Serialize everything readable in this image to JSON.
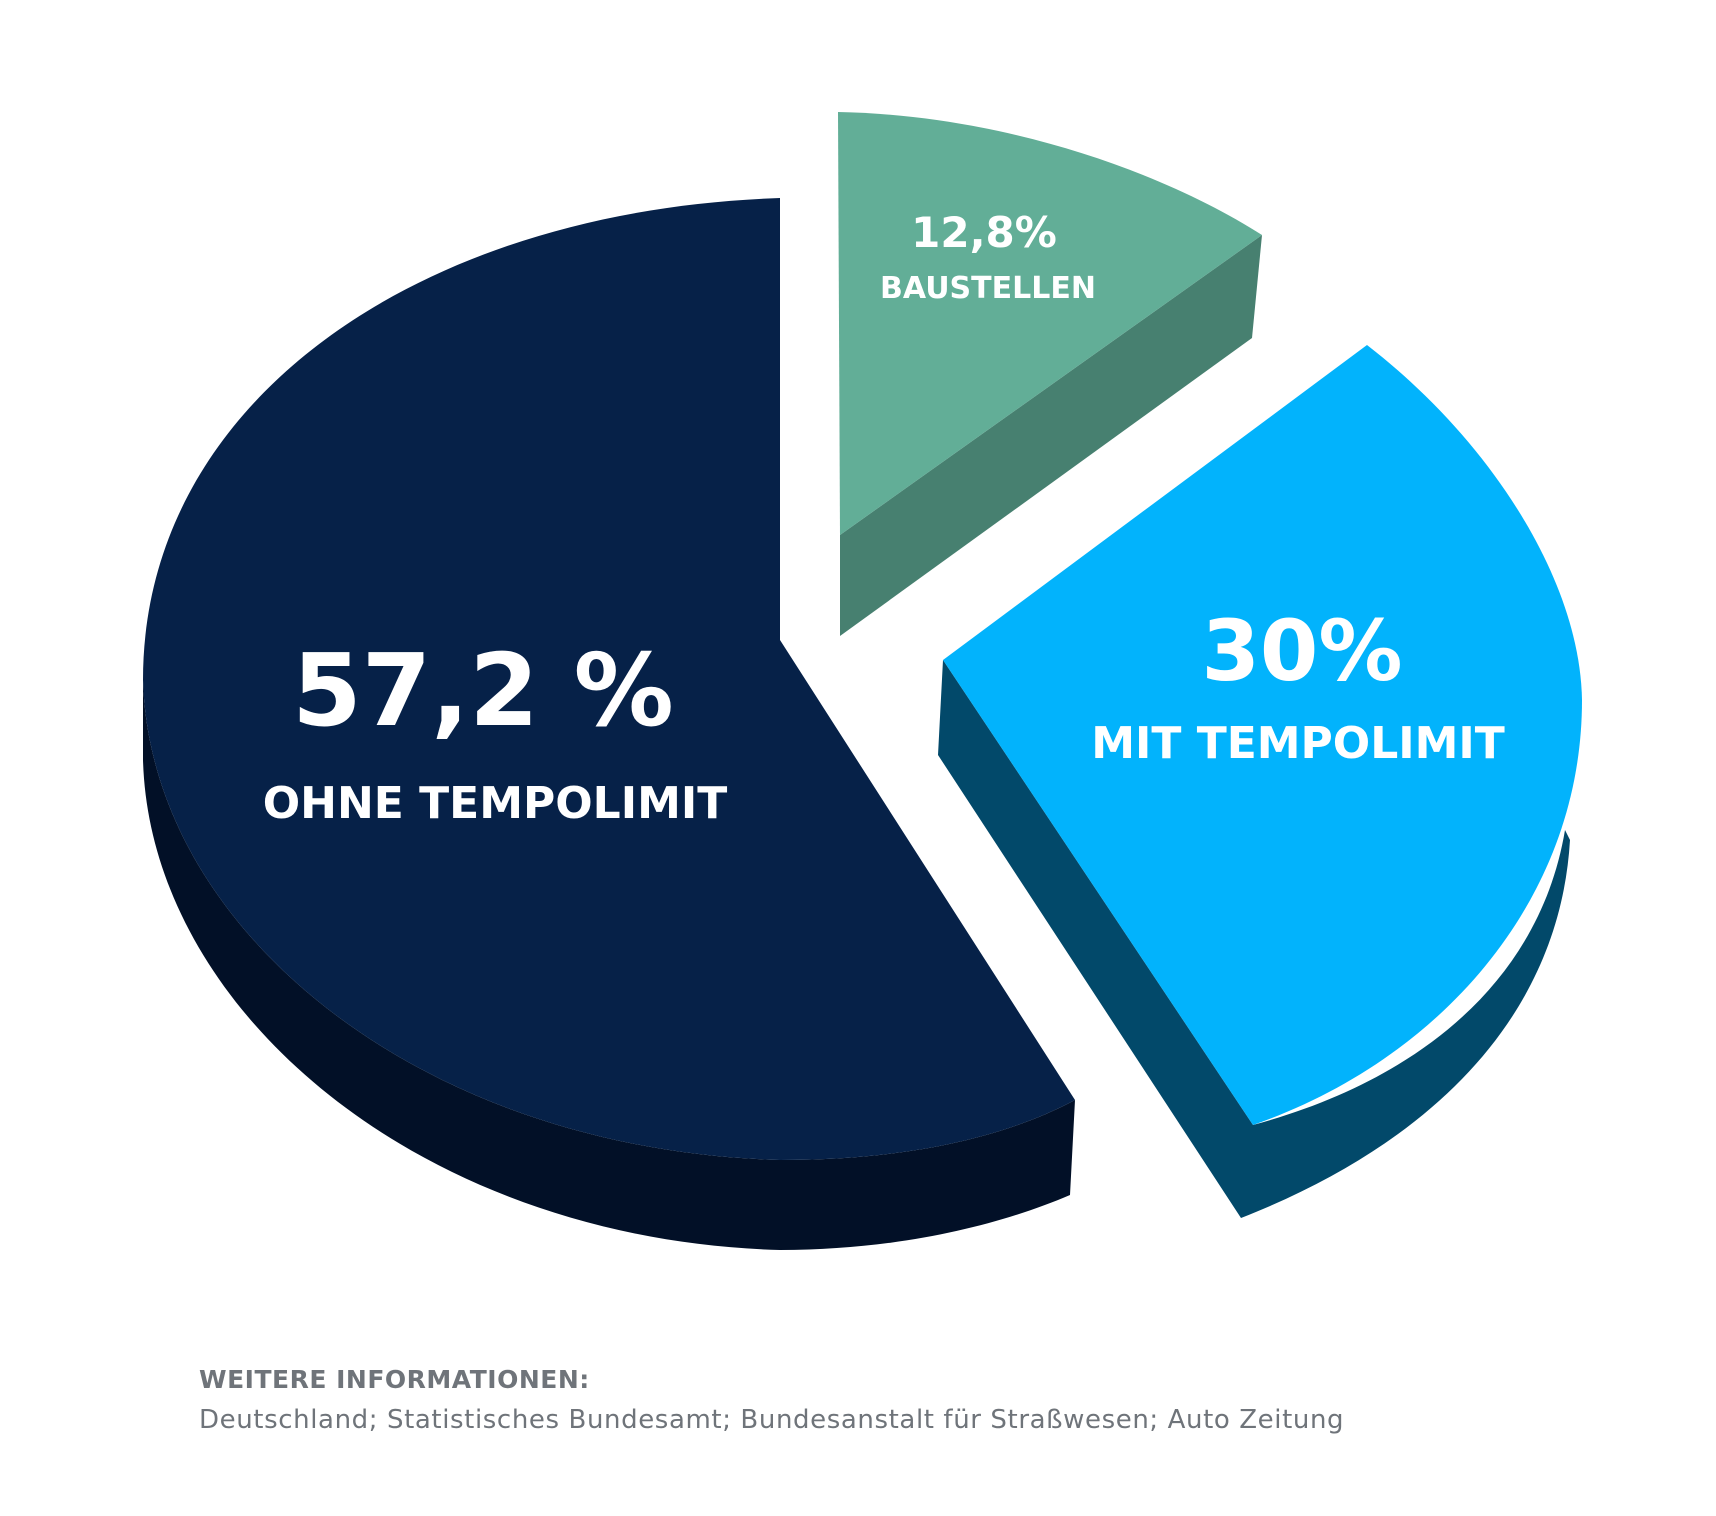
{
  "chart_data": {
    "type": "pie",
    "slices": [
      {
        "value_label": "57,2 %",
        "label": "OHNE TEMPOLIMIT",
        "value": 57.2,
        "color_top": "#062148",
        "color_side": "#021027"
      },
      {
        "value_label": "12,8%",
        "label": "BAUSTELLEN",
        "value": 12.8,
        "color_top": "#62ae97",
        "color_side": "#478070"
      },
      {
        "value_label": "30%",
        "label": "MIT TEMPOLIMIT",
        "value": 30,
        "color_top": "#02b3fc",
        "color_side": "#02496a"
      }
    ]
  },
  "footer": {
    "heading": "WEITERE INFORMATIONEN:",
    "sources": "Deutschland; Statistisches Bundesamt; Bundesanstalt für Straßwesen; Auto Zeitung"
  }
}
